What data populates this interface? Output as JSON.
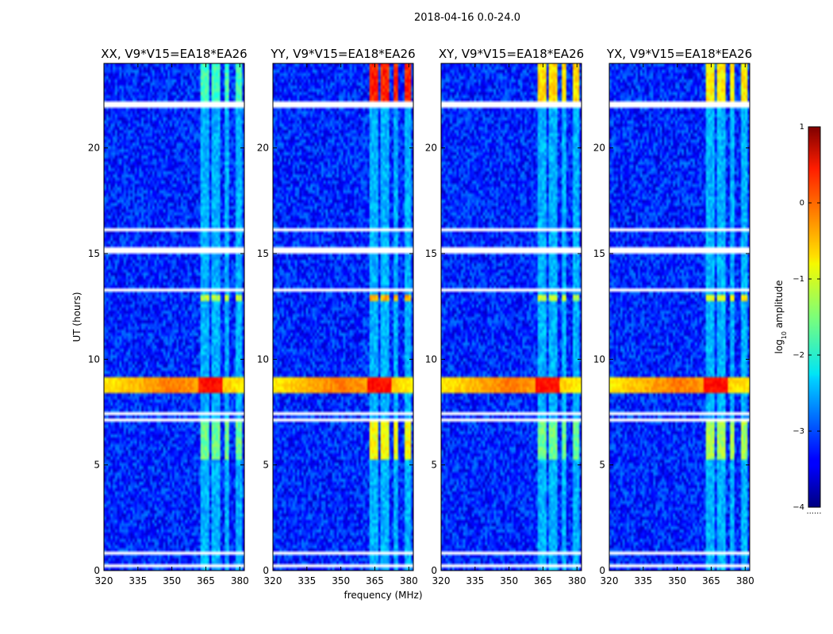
{
  "chart_data": {
    "type": "heatmap",
    "title": "2018-04-16 0.0-24.0",
    "xlabel": "frequency (MHz)",
    "ylabel": "UT (hours)",
    "xlim": [
      320,
      382
    ],
    "ylim": [
      0,
      24
    ],
    "xticks": [
      320,
      335,
      350,
      365,
      380
    ],
    "yticks": [
      0,
      5,
      10,
      15,
      20
    ],
    "colorbar": {
      "label": "log10 amplitude",
      "label_prefix": "log",
      "label_sub": "10",
      "label_suffix": " amplitude",
      "range": [
        -4,
        1
      ],
      "ticks": [
        -4,
        -3,
        -2,
        -1,
        0,
        1
      ],
      "tick_labels": [
        "−4",
        "−3",
        "−2",
        "−1",
        "0",
        "1"
      ],
      "colormap": "jet",
      "under_label": "......"
    },
    "panels": [
      {
        "title": "XX, V9*V15=EA18*EA26",
        "pol": "XX",
        "rfi_late_level": -1.8,
        "rfi_mid_level": -1.2
      },
      {
        "title": "YY, V9*V15=EA18*EA26",
        "pol": "YY",
        "rfi_late_level": 0.2,
        "rfi_mid_level": -0.5
      },
      {
        "title": "XY, V9*V15=EA18*EA26",
        "pol": "XY",
        "rfi_late_level": -0.7,
        "rfi_mid_level": -1.2
      },
      {
        "title": "YX, V9*V15=EA18*EA26",
        "pol": "YX",
        "rfi_late_level": -0.8,
        "rfi_mid_level": -0.9
      }
    ],
    "features": {
      "background_level": -3.2,
      "rfi_channels_mhz": [
        [
          362.5,
          366.5
        ],
        [
          367.5,
          371.5
        ],
        [
          373.5,
          375.0
        ],
        [
          378.0,
          381.0
        ]
      ],
      "broadband_event": {
        "ut": [
          8.4,
          9.1
        ],
        "level": -0.2,
        "peak_level": 0.3
      },
      "flagged_ut_ranges": [
        [
          0.15,
          0.35
        ],
        [
          0.7,
          0.85
        ],
        [
          7.05,
          7.15
        ],
        [
          7.35,
          7.55
        ],
        [
          13.0,
          13.1
        ],
        [
          13.25,
          13.35
        ],
        [
          15.05,
          15.35
        ],
        [
          16.05,
          16.2
        ],
        [
          21.85,
          22.0
        ],
        [
          22.1,
          22.25
        ]
      ]
    }
  }
}
